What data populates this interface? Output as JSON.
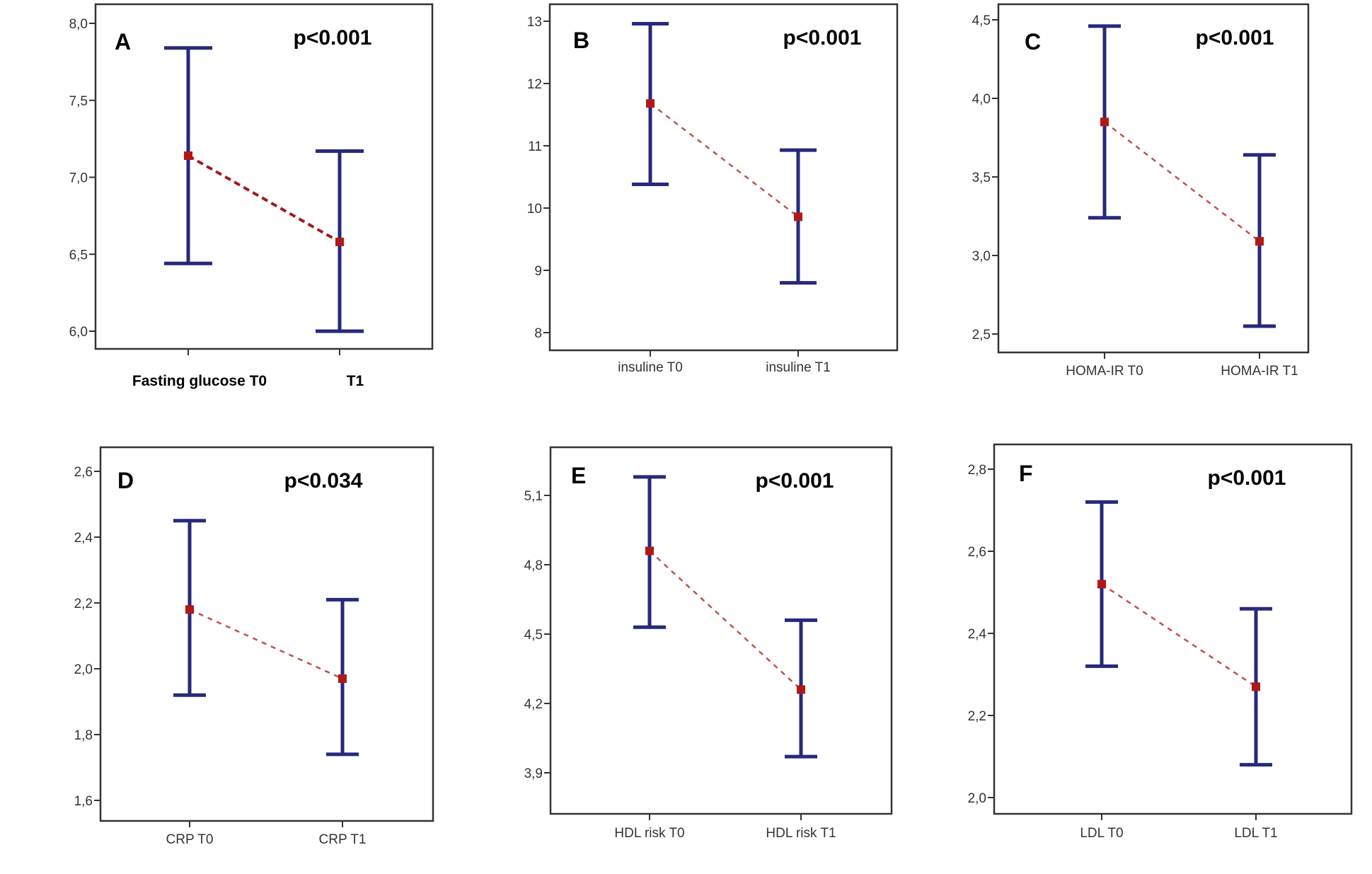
{
  "chart_data": [
    {
      "type": "errorbar",
      "panel": "A",
      "p_value": "p<0.001",
      "categories": [
        "Fasting glucose T0",
        "T1"
      ],
      "means": [
        7.14,
        6.58
      ],
      "upper": [
        7.84,
        7.17
      ],
      "lower": [
        6.44,
        6.0
      ],
      "yticks": [
        "6,0",
        "6,5",
        "7,0",
        "7,5",
        "8,0"
      ],
      "ytick_values": [
        6.0,
        6.5,
        7.0,
        7.5,
        8.0
      ],
      "bold_categories": true
    },
    {
      "type": "errorbar",
      "panel": "B",
      "p_value": "p<0.001",
      "categories": [
        "insuline T0",
        "insuline T1"
      ],
      "means": [
        11.68,
        9.86
      ],
      "upper": [
        12.96,
        10.93
      ],
      "lower": [
        10.38,
        8.8
      ],
      "yticks": [
        "8",
        "9",
        "10",
        "11",
        "12",
        "13"
      ],
      "ytick_values": [
        8,
        9,
        10,
        11,
        12,
        13
      ],
      "bold_categories": false
    },
    {
      "type": "errorbar",
      "panel": "C",
      "p_value": "p<0.001",
      "categories": [
        "HOMA-IR T0",
        "HOMA-IR T1"
      ],
      "means": [
        3.85,
        3.09
      ],
      "upper": [
        4.46,
        3.64
      ],
      "lower": [
        3.24,
        2.55
      ],
      "yticks": [
        "2,5",
        "3,0",
        "3,5",
        "4,0",
        "4,5"
      ],
      "ytick_values": [
        2.5,
        3.0,
        3.5,
        4.0,
        4.5
      ],
      "bold_categories": false
    },
    {
      "type": "errorbar",
      "panel": "D",
      "p_value": "p<0.034",
      "categories": [
        "CRP T0",
        "CRP T1"
      ],
      "means": [
        2.18,
        1.97
      ],
      "upper": [
        2.45,
        2.21
      ],
      "lower": [
        1.92,
        1.74
      ],
      "yticks": [
        "1,6",
        "1,8",
        "2,0",
        "2,2",
        "2,4",
        "2,6"
      ],
      "ytick_values": [
        1.6,
        1.8,
        2.0,
        2.2,
        2.4,
        2.6
      ],
      "bold_categories": false
    },
    {
      "type": "errorbar",
      "panel": "E",
      "p_value": "p<0.001",
      "categories": [
        "HDL risk T0",
        "HDL risk T1"
      ],
      "means": [
        4.86,
        4.26
      ],
      "upper": [
        5.18,
        4.56
      ],
      "lower": [
        4.53,
        3.97
      ],
      "yticks": [
        "3,9",
        "4,2",
        "4,5",
        "4,8",
        "5,1"
      ],
      "ytick_values": [
        3.9,
        4.2,
        4.5,
        4.8,
        5.1
      ],
      "bold_categories": false
    },
    {
      "type": "errorbar",
      "panel": "F",
      "p_value": "p<0.001",
      "categories": [
        "LDL T0",
        "LDL T1"
      ],
      "means": [
        2.52,
        2.27
      ],
      "upper": [
        2.72,
        2.46
      ],
      "lower": [
        2.32,
        2.08
      ],
      "yticks": [
        "2,0",
        "2,2",
        "2,4",
        "2,6",
        "2,8"
      ],
      "ytick_values": [
        2.0,
        2.2,
        2.4,
        2.6,
        2.8
      ],
      "bold_categories": false
    }
  ],
  "colors": {
    "errorbar": "#27297a",
    "mean_marker": "#b01818",
    "connector": "#c0504d",
    "frame": "#333333"
  }
}
